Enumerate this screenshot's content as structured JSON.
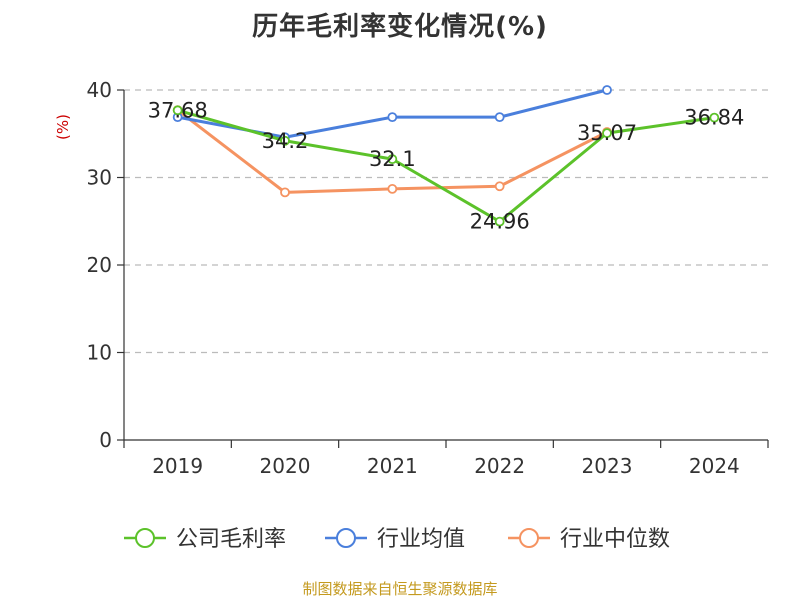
{
  "chart_data": {
    "type": "line",
    "title": "历年毛利率变化情况(%)",
    "ylabel": "(%)",
    "xlabel": "",
    "categories": [
      "2019",
      "2020",
      "2021",
      "2022",
      "2023",
      "2024"
    ],
    "ylim": [
      0,
      40
    ],
    "yticks": [
      0,
      10,
      20,
      30,
      40
    ],
    "grid": true,
    "legend_position": "bottom",
    "series": [
      {
        "name": "公司毛利率",
        "color": "#5cc22a",
        "values": [
          37.68,
          34.2,
          32.1,
          24.96,
          35.07,
          36.84
        ],
        "labels": [
          "37.68",
          "34.2",
          "32.1",
          "24.96",
          "35.07",
          "36.84"
        ]
      },
      {
        "name": "行业均值",
        "color": "#4a7fdc",
        "values": [
          36.9,
          34.6,
          36.9,
          36.9,
          40.0,
          null
        ]
      },
      {
        "name": "行业中位数",
        "color": "#f59361",
        "values": [
          37.7,
          28.3,
          28.7,
          29.0,
          35.2,
          null
        ]
      }
    ]
  },
  "source": "制图数据来自恒生聚源数据库"
}
